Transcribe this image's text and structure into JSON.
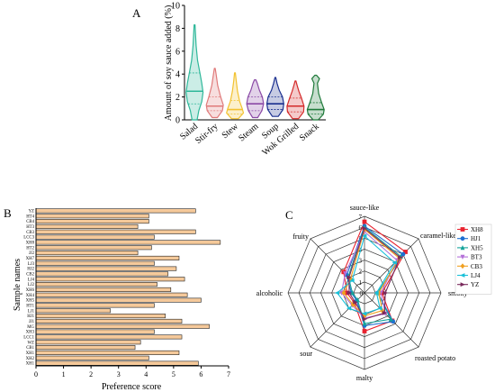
{
  "chart_data": [
    {
      "panel": "A",
      "type": "violin",
      "ylabel": "Amount of soy sauce added (%)",
      "ylim": [
        0,
        10
      ],
      "yticks": [
        0,
        2,
        4,
        6,
        8,
        10
      ],
      "categories": [
        "Salad",
        "Stir-fry",
        "Stew",
        "Steam",
        "Soup",
        "Wok Grilled",
        "Snack"
      ],
      "colors": [
        "#2fb89a",
        "#e07a7a",
        "#f2c230",
        "#8b4aa6",
        "#1a2f8f",
        "#d42a2a",
        "#1f7a3a"
      ],
      "violins": [
        {
          "min": 0.0,
          "max": 8.3,
          "median": 2.5,
          "q1": 1.4,
          "q3": 4.1,
          "profile": [
            [
              0,
              0.3
            ],
            [
              0.8,
              0.5
            ],
            [
              1.6,
              0.85
            ],
            [
              2.4,
              1.0
            ],
            [
              3.2,
              0.85
            ],
            [
              4.2,
              0.6
            ],
            [
              5.2,
              0.35
            ],
            [
              6.5,
              0.18
            ],
            [
              8.3,
              0.05
            ]
          ]
        },
        {
          "min": 0.2,
          "max": 4.5,
          "median": 1.2,
          "q1": 0.8,
          "q3": 2.0,
          "profile": [
            [
              0.2,
              0.3
            ],
            [
              0.8,
              0.9
            ],
            [
              1.3,
              1.0
            ],
            [
              2.0,
              0.7
            ],
            [
              3.0,
              0.35
            ],
            [
              4.0,
              0.15
            ],
            [
              4.5,
              0.05
            ]
          ]
        },
        {
          "min": 0.1,
          "max": 4.1,
          "median": 0.9,
          "q1": 0.5,
          "q3": 1.7,
          "profile": [
            [
              0.1,
              0.4
            ],
            [
              0.6,
              1.0
            ],
            [
              1.0,
              0.85
            ],
            [
              1.6,
              0.55
            ],
            [
              2.5,
              0.3
            ],
            [
              3.4,
              0.15
            ],
            [
              4.1,
              0.05
            ]
          ]
        },
        {
          "min": 0.2,
          "max": 3.5,
          "median": 1.4,
          "q1": 0.8,
          "q3": 2.0,
          "profile": [
            [
              0.2,
              0.3
            ],
            [
              0.8,
              0.8
            ],
            [
              1.4,
              1.0
            ],
            [
              2.0,
              0.85
            ],
            [
              2.6,
              0.5
            ],
            [
              3.2,
              0.25
            ],
            [
              3.5,
              0.08
            ]
          ]
        },
        {
          "min": 0.3,
          "max": 3.7,
          "median": 1.4,
          "q1": 0.9,
          "q3": 2.0,
          "profile": [
            [
              0.3,
              0.35
            ],
            [
              0.9,
              0.9
            ],
            [
              1.4,
              1.0
            ],
            [
              2.0,
              0.85
            ],
            [
              2.6,
              0.45
            ],
            [
              3.2,
              0.2
            ],
            [
              3.7,
              0.05
            ]
          ]
        },
        {
          "min": 0.1,
          "max": 3.4,
          "median": 1.2,
          "q1": 0.7,
          "q3": 1.9,
          "profile": [
            [
              0.1,
              0.35
            ],
            [
              0.7,
              0.95
            ],
            [
              1.2,
              1.0
            ],
            [
              1.9,
              0.7
            ],
            [
              2.5,
              0.4
            ],
            [
              3.0,
              0.2
            ],
            [
              3.4,
              0.05
            ]
          ]
        },
        {
          "min": 0.0,
          "max": 3.9,
          "median": 0.9,
          "q1": 0.5,
          "q3": 1.5,
          "profile": [
            [
              0,
              0.3
            ],
            [
              0.5,
              0.9
            ],
            [
              0.9,
              1.0
            ],
            [
              1.5,
              0.7
            ],
            [
              2.3,
              0.35
            ],
            [
              3.2,
              0.2
            ],
            [
              3.6,
              0.45
            ],
            [
              3.9,
              0.1
            ]
          ]
        }
      ]
    },
    {
      "panel": "B",
      "type": "bar",
      "orientation": "horizontal",
      "xlabel": "Preference score",
      "ylabel": "Sample names",
      "xlim": [
        0,
        7
      ],
      "xticks": [
        0,
        1,
        2,
        3,
        4,
        5,
        6,
        7
      ],
      "bar_color": "#f5c99a",
      "categories": [
        "YZ",
        "HT4",
        "CB4",
        "HT3",
        "CB3",
        "LCC3",
        "XH8",
        "HT2",
        "JJ2",
        "XH7",
        "LJ3",
        "HJ2",
        "CB2",
        "LJ4",
        "LJ2",
        "XH6",
        "XH4",
        "XH5",
        "HT1",
        "LJ1",
        "HJ1",
        "JJ1",
        "MG",
        "XH3",
        "LCC1",
        "WZ",
        "CB1",
        "XH1",
        "XH2",
        "XH1"
      ],
      "values": [
        5.8,
        4.1,
        4.1,
        3.7,
        5.8,
        4.3,
        6.7,
        4.2,
        3.7,
        5.2,
        4.3,
        5.1,
        4.8,
        5.4,
        4.4,
        4.9,
        5.5,
        6.0,
        4.3,
        2.7,
        4.7,
        5.3,
        6.3,
        4.3,
        5.3,
        3.8,
        3.6,
        5.2,
        4.1,
        5.9
      ]
    },
    {
      "panel": "C",
      "type": "radar",
      "axes": [
        "sauce-like",
        "caramel-like",
        "smoky",
        "roasted potato",
        "malty",
        "sour",
        "alcoholic",
        "fruity"
      ],
      "rlim": [
        0,
        7
      ],
      "rticks": [
        0,
        1,
        2,
        3,
        4,
        5,
        6,
        7
      ],
      "series": [
        {
          "name": "XH8",
          "color": "#e8222f",
          "marker": "square",
          "values": [
            6.5,
            5.3,
            1.6,
            3.6,
            3.5,
            1.3,
            1.6,
            2.7
          ]
        },
        {
          "name": "HJ1",
          "color": "#1f6fd1",
          "marker": "circle",
          "values": [
            6.1,
            5.0,
            1.2,
            3.7,
            3.0,
            1.0,
            1.2,
            2.3
          ]
        },
        {
          "name": "XH5",
          "color": "#15a39a",
          "marker": "triangle-up",
          "values": [
            6.0,
            4.7,
            1.2,
            3.4,
            2.8,
            0.9,
            1.1,
            2.1
          ]
        },
        {
          "name": "BT3",
          "color": "#b36fd8",
          "marker": "triangle-down",
          "values": [
            5.6,
            4.2,
            1.5,
            2.7,
            2.3,
            1.6,
            2.1,
            2.5
          ]
        },
        {
          "name": "CB3",
          "color": "#f0a020",
          "marker": "diamond",
          "values": [
            5.8,
            4.5,
            1.3,
            2.3,
            2.1,
            1.5,
            1.9,
            1.8
          ]
        },
        {
          "name": "LJ4",
          "color": "#19c0d8",
          "marker": "triangle-left",
          "values": [
            5.2,
            3.9,
            1.1,
            2.0,
            1.9,
            2.0,
            2.5,
            1.6
          ]
        },
        {
          "name": "YZ",
          "color": "#7a2a5c",
          "marker": "triangle-right",
          "values": [
            5.9,
            4.6,
            1.9,
            2.6,
            2.4,
            1.2,
            1.4,
            2.0
          ]
        }
      ]
    }
  ]
}
